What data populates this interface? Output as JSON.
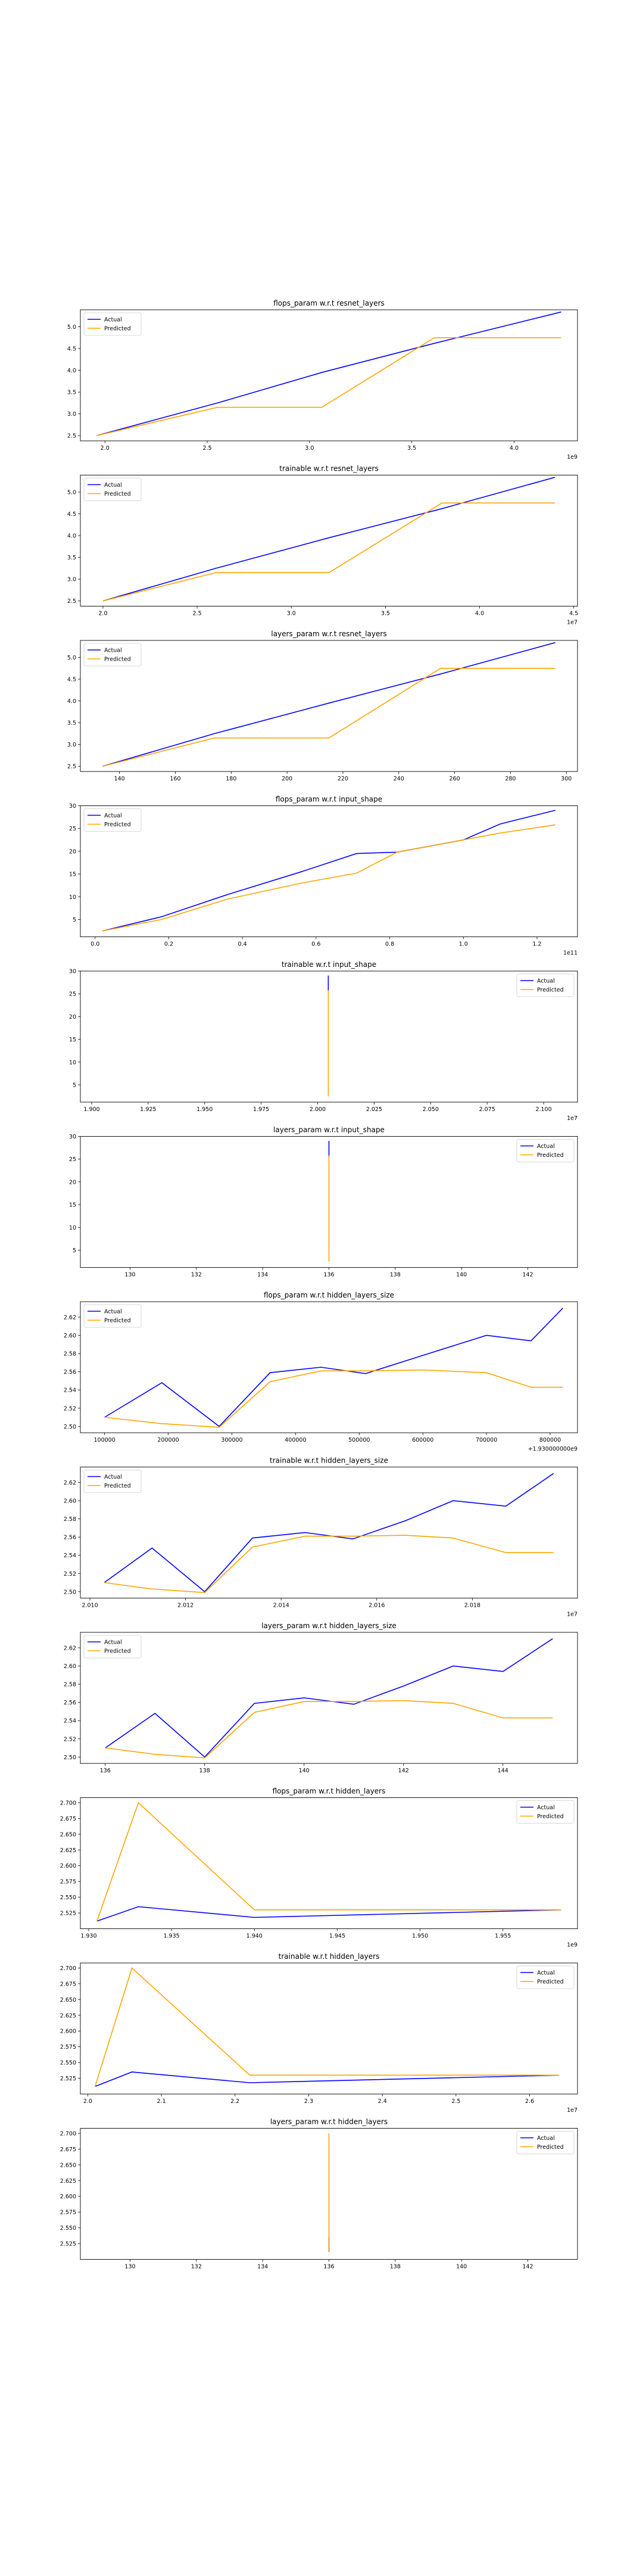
{
  "chart_data": [
    {
      "type": "line",
      "title": "flops_param w.r.t resnet_layers",
      "x": [
        1.96,
        2.55,
        3.06,
        3.61,
        4.23
      ],
      "x_ticks": [
        2.0,
        2.5,
        3.0,
        3.5,
        4.0
      ],
      "x_tick_labels": [
        "2.0",
        "2.5",
        "3.0",
        "3.5",
        "4.0"
      ],
      "x_offset_label": "1e9",
      "xlim": [
        1.88,
        4.31
      ],
      "ylim": [
        2.38,
        5.39
      ],
      "y_ticks": [
        2.5,
        3.0,
        3.5,
        4.0,
        4.5,
        5.0
      ],
      "y_tick_labels": [
        "2.5",
        "3.0",
        "3.5",
        "4.0",
        "4.5",
        "5.0"
      ],
      "series": [
        {
          "name": "Actual",
          "color": "#0000ff",
          "values": [
            2.5,
            3.25,
            3.95,
            4.62,
            5.34
          ]
        },
        {
          "name": "Predicted",
          "color": "#ffa500",
          "values": [
            2.5,
            3.15,
            3.15,
            4.75,
            4.75
          ]
        }
      ],
      "legend": "upper-left"
    },
    {
      "type": "line",
      "title": "trainable w.r.t resnet_layers",
      "x": [
        2.0,
        2.6,
        3.2,
        3.8,
        4.4
      ],
      "x_ticks": [
        2.0,
        2.5,
        3.0,
        3.5,
        4.0,
        4.5
      ],
      "x_tick_labels": [
        "2.0",
        "2.5",
        "3.0",
        "3.5",
        "4.0",
        "4.5"
      ],
      "x_offset_label": "1e7",
      "xlim": [
        1.88,
        4.52
      ],
      "ylim": [
        2.38,
        5.39
      ],
      "y_ticks": [
        2.5,
        3.0,
        3.5,
        4.0,
        4.5,
        5.0
      ],
      "y_tick_labels": [
        "2.5",
        "3.0",
        "3.5",
        "4.0",
        "4.5",
        "5.0"
      ],
      "series": [
        {
          "name": "Actual",
          "color": "#0000ff",
          "values": [
            2.5,
            3.25,
            3.95,
            4.62,
            5.34
          ]
        },
        {
          "name": "Predicted",
          "color": "#ffa500",
          "values": [
            2.5,
            3.15,
            3.15,
            4.75,
            4.75
          ]
        }
      ],
      "legend": "upper-left"
    },
    {
      "type": "line",
      "title": "layers_param w.r.t resnet_layers",
      "x": [
        134,
        174,
        215,
        255,
        296
      ],
      "x_ticks": [
        140,
        160,
        180,
        200,
        220,
        240,
        260,
        280,
        300
      ],
      "x_tick_labels": [
        "140",
        "160",
        "180",
        "200",
        "220",
        "240",
        "260",
        "280",
        "300"
      ],
      "x_offset_label": "",
      "xlim": [
        126,
        304
      ],
      "ylim": [
        2.38,
        5.39
      ],
      "y_ticks": [
        2.5,
        3.0,
        3.5,
        4.0,
        4.5,
        5.0
      ],
      "y_tick_labels": [
        "2.5",
        "3.0",
        "3.5",
        "4.0",
        "4.5",
        "5.0"
      ],
      "series": [
        {
          "name": "Actual",
          "color": "#0000ff",
          "values": [
            2.5,
            3.25,
            3.95,
            4.62,
            5.34
          ]
        },
        {
          "name": "Predicted",
          "color": "#ffa500",
          "values": [
            2.5,
            3.15,
            3.15,
            4.75,
            4.75
          ]
        }
      ],
      "legend": "upper-left"
    },
    {
      "type": "line",
      "title": "flops_param w.r.t input_shape",
      "x": [
        0.02,
        0.18,
        0.36,
        0.56,
        0.71,
        0.82,
        1.0,
        1.1,
        1.25
      ],
      "x_ticks": [
        0.0,
        0.2,
        0.4,
        0.6,
        0.8,
        1.0,
        1.2
      ],
      "x_tick_labels": [
        "0.0",
        "0.2",
        "0.4",
        "0.6",
        "0.8",
        "1.0",
        "1.2"
      ],
      "x_offset_label": "1e11",
      "xlim": [
        -0.04,
        1.31
      ],
      "ylim": [
        1.2,
        30
      ],
      "y_ticks": [
        5,
        10,
        15,
        20,
        25,
        30
      ],
      "y_tick_labels": [
        "5",
        "10",
        "15",
        "20",
        "25",
        "30"
      ],
      "series": [
        {
          "name": "Actual",
          "color": "#0000ff",
          "values": [
            2.5,
            5.6,
            10.5,
            15.5,
            19.5,
            19.8,
            22.5,
            26.0,
            29.0
          ]
        },
        {
          "name": "Predicted",
          "color": "#ffa500",
          "values": [
            2.5,
            5.0,
            9.5,
            13.0,
            15.2,
            19.8,
            22.5,
            24.0,
            25.8
          ]
        }
      ],
      "legend": "upper-left"
    },
    {
      "type": "line",
      "title": "trainable w.r.t input_shape",
      "x": [
        2.0047,
        2.0047
      ],
      "x_ticks": [
        1.9,
        1.925,
        1.95,
        1.975,
        2.0,
        2.025,
        2.05,
        2.075,
        2.1
      ],
      "x_tick_labels": [
        "1.900",
        "1.925",
        "1.950",
        "1.975",
        "2.000",
        "2.025",
        "2.050",
        "2.075",
        "2.100"
      ],
      "x_offset_label": "1e7",
      "xlim": [
        1.895,
        2.115
      ],
      "ylim": [
        1.2,
        30
      ],
      "y_ticks": [
        5,
        10,
        15,
        20,
        25,
        30
      ],
      "y_tick_labels": [
        "5",
        "10",
        "15",
        "20",
        "25",
        "30"
      ],
      "series": [
        {
          "name": "Actual",
          "color": "#0000ff",
          "values": [
            25.5,
            29.0
          ]
        },
        {
          "name": "Predicted",
          "color": "#ffa500",
          "values": [
            2.5,
            25.8
          ]
        }
      ],
      "legend": "upper-right"
    },
    {
      "type": "line",
      "title": "layers_param w.r.t input_shape",
      "x": [
        136,
        136
      ],
      "x_ticks": [
        130,
        132,
        134,
        136,
        138,
        140,
        142
      ],
      "x_tick_labels": [
        "130",
        "132",
        "134",
        "136",
        "138",
        "140",
        "142"
      ],
      "x_offset_label": "",
      "xlim": [
        128.5,
        143.5
      ],
      "ylim": [
        1.2,
        30
      ],
      "y_ticks": [
        5,
        10,
        15,
        20,
        25,
        30
      ],
      "y_tick_labels": [
        "5",
        "10",
        "15",
        "20",
        "25",
        "30"
      ],
      "series": [
        {
          "name": "Actual",
          "color": "#0000ff",
          "values": [
            25.5,
            29.0
          ]
        },
        {
          "name": "Predicted",
          "color": "#ffa500",
          "values": [
            2.5,
            25.8
          ]
        }
      ],
      "legend": "upper-right"
    },
    {
      "type": "line",
      "title": "flops_param w.r.t hidden_layers_size",
      "x": [
        100000,
        190000,
        280000,
        360000,
        440000,
        510000,
        600000,
        700000,
        770000,
        820000
      ],
      "x_ticks": [
        100000,
        200000,
        300000,
        400000,
        500000,
        600000,
        700000,
        800000
      ],
      "x_tick_labels": [
        "100000",
        "200000",
        "300000",
        "400000",
        "500000",
        "600000",
        "700000",
        "800000"
      ],
      "x_offset_label": "+1.930000000e9",
      "xlim": [
        62000,
        843000
      ],
      "ylim": [
        2.493,
        2.637
      ],
      "y_ticks": [
        2.5,
        2.52,
        2.54,
        2.56,
        2.58,
        2.6,
        2.62
      ],
      "y_tick_labels": [
        "2.50",
        "2.52",
        "2.54",
        "2.56",
        "2.58",
        "2.60",
        "2.62"
      ],
      "series": [
        {
          "name": "Actual",
          "color": "#0000ff",
          "values": [
            2.51,
            2.548,
            2.5,
            2.559,
            2.565,
            2.558,
            2.578,
            2.6,
            2.594,
            2.63
          ]
        },
        {
          "name": "Predicted",
          "color": "#ffa500",
          "values": [
            2.51,
            2.503,
            2.499,
            2.549,
            2.561,
            2.561,
            2.562,
            2.559,
            2.543,
            2.543
          ]
        }
      ],
      "legend": "upper-left"
    },
    {
      "type": "line",
      "title": "trainable w.r.t hidden_layers_size",
      "x": [
        2.0103,
        2.0113,
        2.0124,
        2.0134,
        2.0145,
        2.0155,
        2.0166,
        2.0176,
        2.0187,
        2.0197
      ],
      "x_ticks": [
        2.01,
        2.012,
        2.014,
        2.016,
        2.018
      ],
      "x_tick_labels": [
        "2.010",
        "2.012",
        "2.014",
        "2.016",
        "2.018"
      ],
      "x_offset_label": "1e7",
      "xlim": [
        2.0098,
        2.0202
      ],
      "ylim": [
        2.493,
        2.637
      ],
      "y_ticks": [
        2.5,
        2.52,
        2.54,
        2.56,
        2.58,
        2.6,
        2.62
      ],
      "y_tick_labels": [
        "2.50",
        "2.52",
        "2.54",
        "2.56",
        "2.58",
        "2.60",
        "2.62"
      ],
      "series": [
        {
          "name": "Actual",
          "color": "#0000ff",
          "values": [
            2.51,
            2.548,
            2.5,
            2.559,
            2.565,
            2.558,
            2.578,
            2.6,
            2.594,
            2.63
          ]
        },
        {
          "name": "Predicted",
          "color": "#ffa500",
          "values": [
            2.51,
            2.503,
            2.499,
            2.549,
            2.561,
            2.561,
            2.562,
            2.559,
            2.543,
            2.543
          ]
        }
      ],
      "legend": "upper-left"
    },
    {
      "type": "line",
      "title": "layers_param w.r.t hidden_layers_size",
      "x": [
        136.0,
        137.0,
        138.0,
        139.0,
        140.0,
        141.0,
        142.0,
        143.0,
        144.0,
        145.0
      ],
      "x_ticks": [
        136,
        138,
        140,
        142,
        144
      ],
      "x_tick_labels": [
        "136",
        "138",
        "140",
        "142",
        "144"
      ],
      "x_offset_label": "",
      "xlim": [
        135.5,
        145.5
      ],
      "ylim": [
        2.493,
        2.637
      ],
      "y_ticks": [
        2.5,
        2.52,
        2.54,
        2.56,
        2.58,
        2.6,
        2.62
      ],
      "y_tick_labels": [
        "2.50",
        "2.52",
        "2.54",
        "2.56",
        "2.58",
        "2.60",
        "2.62"
      ],
      "series": [
        {
          "name": "Actual",
          "color": "#0000ff",
          "values": [
            2.51,
            2.548,
            2.5,
            2.559,
            2.565,
            2.558,
            2.578,
            2.6,
            2.594,
            2.63
          ]
        },
        {
          "name": "Predicted",
          "color": "#ffa500",
          "values": [
            2.51,
            2.503,
            2.499,
            2.549,
            2.561,
            2.561,
            2.562,
            2.559,
            2.543,
            2.543
          ]
        }
      ],
      "legend": "upper-left"
    },
    {
      "type": "line",
      "title": "flops_param w.r.t hidden_layers",
      "x": [
        1.9305,
        1.933,
        1.94,
        1.9585
      ],
      "x_ticks": [
        1.93,
        1.935,
        1.94,
        1.945,
        1.95,
        1.955
      ],
      "x_tick_labels": [
        "1.930",
        "1.935",
        "1.940",
        "1.945",
        "1.950",
        "1.955"
      ],
      "x_offset_label": "1e9",
      "xlim": [
        1.9295,
        1.9595
      ],
      "ylim": [
        2.5,
        2.708
      ],
      "y_ticks": [
        2.525,
        2.55,
        2.575,
        2.6,
        2.625,
        2.65,
        2.675,
        2.7
      ],
      "y_tick_labels": [
        "2.525",
        "2.550",
        "2.575",
        "2.600",
        "2.625",
        "2.650",
        "2.675",
        "2.700"
      ],
      "series": [
        {
          "name": "Actual",
          "color": "#0000ff",
          "values": [
            2.512,
            2.535,
            2.518,
            2.53
          ]
        },
        {
          "name": "Predicted",
          "color": "#ffa500",
          "values": [
            2.512,
            2.7,
            2.53,
            2.53
          ]
        }
      ],
      "legend": "upper-right"
    },
    {
      "type": "line",
      "title": "trainable w.r.t hidden_layers",
      "x": [
        2.01,
        2.06,
        2.22,
        2.64
      ],
      "x_ticks": [
        2.0,
        2.1,
        2.2,
        2.3,
        2.4,
        2.5,
        2.6
      ],
      "x_tick_labels": [
        "2.0",
        "2.1",
        "2.2",
        "2.3",
        "2.4",
        "2.5",
        "2.6"
      ],
      "x_offset_label": "1e7",
      "xlim": [
        1.99,
        2.665
      ],
      "ylim": [
        2.5,
        2.708
      ],
      "y_ticks": [
        2.525,
        2.55,
        2.575,
        2.6,
        2.625,
        2.65,
        2.675,
        2.7
      ],
      "y_tick_labels": [
        "2.525",
        "2.550",
        "2.575",
        "2.600",
        "2.625",
        "2.650",
        "2.675",
        "2.700"
      ],
      "series": [
        {
          "name": "Actual",
          "color": "#0000ff",
          "values": [
            2.512,
            2.535,
            2.518,
            2.53
          ]
        },
        {
          "name": "Predicted",
          "color": "#ffa500",
          "values": [
            2.512,
            2.7,
            2.53,
            2.53
          ]
        }
      ],
      "legend": "upper-right"
    },
    {
      "type": "line",
      "title": "layers_param w.r.t hidden_layers",
      "x": [
        136,
        136
      ],
      "x_ticks": [
        130,
        132,
        134,
        136,
        138,
        140,
        142
      ],
      "x_tick_labels": [
        "130",
        "132",
        "134",
        "136",
        "138",
        "140",
        "142"
      ],
      "x_offset_label": "",
      "xlim": [
        128.5,
        143.5
      ],
      "ylim": [
        2.5,
        2.708
      ],
      "y_ticks": [
        2.525,
        2.55,
        2.575,
        2.6,
        2.625,
        2.65,
        2.675,
        2.7
      ],
      "y_tick_labels": [
        "2.525",
        "2.550",
        "2.575",
        "2.600",
        "2.625",
        "2.650",
        "2.675",
        "2.700"
      ],
      "series": [
        {
          "name": "Actual",
          "color": "#0000ff",
          "values": [
            2.512,
            2.535
          ]
        },
        {
          "name": "Predicted",
          "color": "#ffa500",
          "values": [
            2.512,
            2.7
          ]
        }
      ],
      "legend": "upper-right"
    }
  ]
}
